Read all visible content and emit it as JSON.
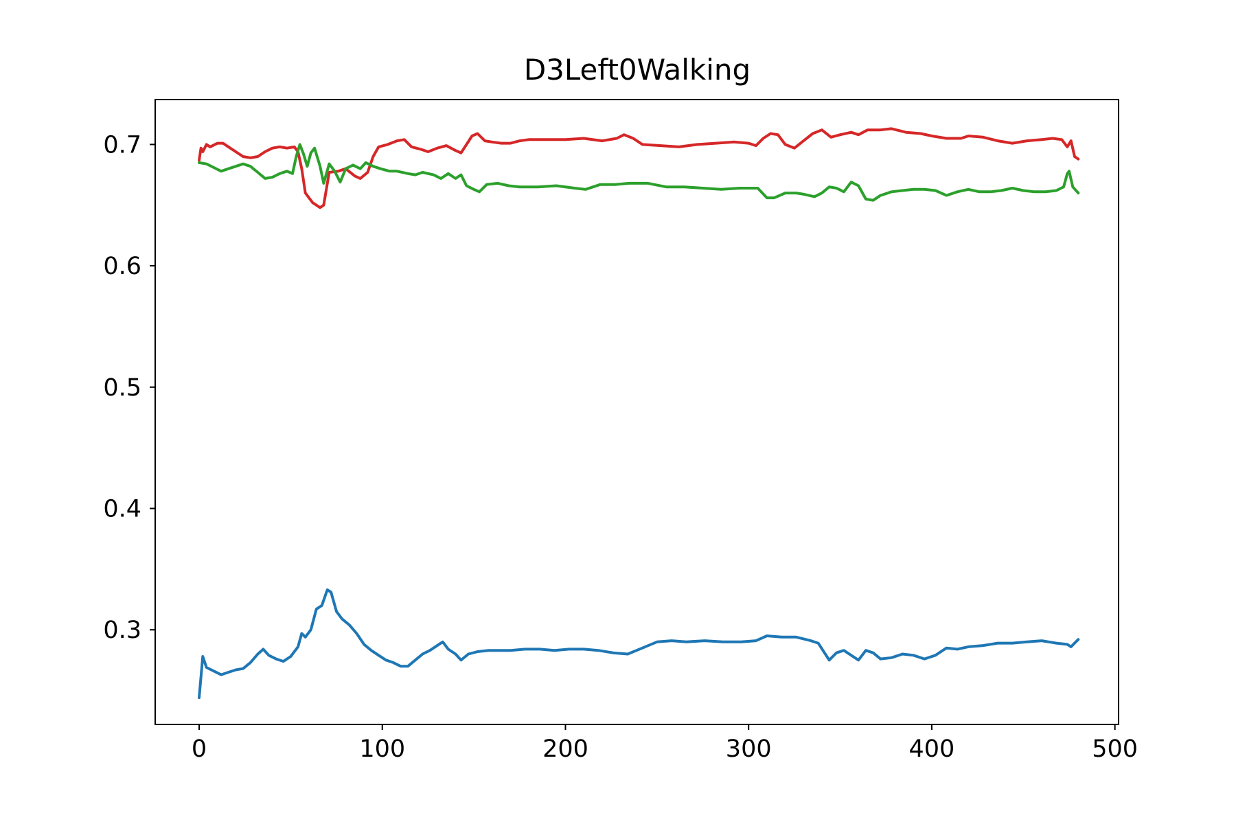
{
  "chart_data": {
    "type": "line",
    "title": "D3Left0Walking",
    "xlabel": "",
    "ylabel": "",
    "xlim": [
      -24,
      502
    ],
    "ylim": [
      0.222,
      0.737
    ],
    "xticks": [
      0,
      100,
      200,
      300,
      400,
      500
    ],
    "yticks": [
      0.3,
      0.4,
      0.5,
      0.6,
      0.7
    ],
    "grid": false,
    "legend": "none",
    "series": [
      {
        "color": "#d62728",
        "points": [
          [
            0,
            0.687
          ],
          [
            1,
            0.697
          ],
          [
            2,
            0.694
          ],
          [
            4,
            0.7
          ],
          [
            6,
            0.698
          ],
          [
            10,
            0.701
          ],
          [
            13,
            0.701
          ],
          [
            16,
            0.698
          ],
          [
            20,
            0.694
          ],
          [
            24,
            0.69
          ],
          [
            28,
            0.689
          ],
          [
            32,
            0.69
          ],
          [
            36,
            0.694
          ],
          [
            40,
            0.697
          ],
          [
            44,
            0.698
          ],
          [
            48,
            0.697
          ],
          [
            52,
            0.698
          ],
          [
            54,
            0.694
          ],
          [
            56,
            0.68
          ],
          [
            58,
            0.66
          ],
          [
            62,
            0.652
          ],
          [
            66,
            0.648
          ],
          [
            68,
            0.65
          ],
          [
            71,
            0.677
          ],
          [
            76,
            0.678
          ],
          [
            80,
            0.68
          ],
          [
            85,
            0.674
          ],
          [
            88,
            0.672
          ],
          [
            92,
            0.677
          ],
          [
            95,
            0.69
          ],
          [
            98,
            0.698
          ],
          [
            103,
            0.7
          ],
          [
            108,
            0.703
          ],
          [
            112,
            0.704
          ],
          [
            116,
            0.698
          ],
          [
            121,
            0.696
          ],
          [
            125,
            0.694
          ],
          [
            130,
            0.697
          ],
          [
            135,
            0.699
          ],
          [
            140,
            0.695
          ],
          [
            143,
            0.693
          ],
          [
            146,
            0.7
          ],
          [
            149,
            0.707
          ],
          [
            152,
            0.709
          ],
          [
            156,
            0.703
          ],
          [
            160,
            0.702
          ],
          [
            165,
            0.701
          ],
          [
            170,
            0.701
          ],
          [
            175,
            0.703
          ],
          [
            180,
            0.704
          ],
          [
            190,
            0.704
          ],
          [
            200,
            0.704
          ],
          [
            210,
            0.705
          ],
          [
            220,
            0.703
          ],
          [
            228,
            0.705
          ],
          [
            232,
            0.708
          ],
          [
            237,
            0.705
          ],
          [
            242,
            0.7
          ],
          [
            252,
            0.699
          ],
          [
            262,
            0.698
          ],
          [
            272,
            0.7
          ],
          [
            282,
            0.701
          ],
          [
            292,
            0.702
          ],
          [
            300,
            0.701
          ],
          [
            304,
            0.699
          ],
          [
            308,
            0.705
          ],
          [
            312,
            0.709
          ],
          [
            316,
            0.708
          ],
          [
            320,
            0.7
          ],
          [
            325,
            0.697
          ],
          [
            330,
            0.703
          ],
          [
            335,
            0.709
          ],
          [
            340,
            0.712
          ],
          [
            345,
            0.706
          ],
          [
            350,
            0.708
          ],
          [
            356,
            0.71
          ],
          [
            360,
            0.708
          ],
          [
            365,
            0.712
          ],
          [
            372,
            0.712
          ],
          [
            378,
            0.713
          ],
          [
            386,
            0.71
          ],
          [
            394,
            0.709
          ],
          [
            400,
            0.707
          ],
          [
            408,
            0.705
          ],
          [
            416,
            0.705
          ],
          [
            420,
            0.707
          ],
          [
            428,
            0.706
          ],
          [
            436,
            0.703
          ],
          [
            444,
            0.701
          ],
          [
            452,
            0.703
          ],
          [
            460,
            0.704
          ],
          [
            466,
            0.705
          ],
          [
            471,
            0.704
          ],
          [
            474,
            0.698
          ],
          [
            476,
            0.703
          ],
          [
            478,
            0.69
          ],
          [
            480,
            0.688
          ]
        ]
      },
      {
        "color": "#2ca02c",
        "points": [
          [
            0,
            0.685
          ],
          [
            4,
            0.684
          ],
          [
            8,
            0.681
          ],
          [
            12,
            0.678
          ],
          [
            16,
            0.68
          ],
          [
            20,
            0.682
          ],
          [
            24,
            0.684
          ],
          [
            28,
            0.682
          ],
          [
            32,
            0.677
          ],
          [
            36,
            0.672
          ],
          [
            40,
            0.673
          ],
          [
            44,
            0.676
          ],
          [
            48,
            0.678
          ],
          [
            51,
            0.676
          ],
          [
            53,
            0.69
          ],
          [
            55,
            0.7
          ],
          [
            57,
            0.692
          ],
          [
            59,
            0.682
          ],
          [
            61,
            0.693
          ],
          [
            63,
            0.697
          ],
          [
            66,
            0.682
          ],
          [
            68,
            0.668
          ],
          [
            71,
            0.684
          ],
          [
            74,
            0.678
          ],
          [
            77,
            0.669
          ],
          [
            80,
            0.68
          ],
          [
            84,
            0.683
          ],
          [
            88,
            0.68
          ],
          [
            91,
            0.685
          ],
          [
            95,
            0.682
          ],
          [
            99,
            0.68
          ],
          [
            104,
            0.678
          ],
          [
            108,
            0.678
          ],
          [
            114,
            0.676
          ],
          [
            118,
            0.675
          ],
          [
            122,
            0.677
          ],
          [
            128,
            0.675
          ],
          [
            132,
            0.672
          ],
          [
            136,
            0.676
          ],
          [
            140,
            0.672
          ],
          [
            143,
            0.675
          ],
          [
            146,
            0.666
          ],
          [
            150,
            0.663
          ],
          [
            153,
            0.661
          ],
          [
            157,
            0.667
          ],
          [
            163,
            0.668
          ],
          [
            169,
            0.666
          ],
          [
            175,
            0.665
          ],
          [
            185,
            0.665
          ],
          [
            195,
            0.666
          ],
          [
            205,
            0.664
          ],
          [
            211,
            0.663
          ],
          [
            219,
            0.667
          ],
          [
            227,
            0.667
          ],
          [
            235,
            0.668
          ],
          [
            245,
            0.668
          ],
          [
            255,
            0.665
          ],
          [
            265,
            0.665
          ],
          [
            275,
            0.664
          ],
          [
            285,
            0.663
          ],
          [
            295,
            0.664
          ],
          [
            305,
            0.664
          ],
          [
            310,
            0.656
          ],
          [
            314,
            0.656
          ],
          [
            320,
            0.66
          ],
          [
            326,
            0.66
          ],
          [
            330,
            0.659
          ],
          [
            336,
            0.657
          ],
          [
            340,
            0.66
          ],
          [
            344,
            0.665
          ],
          [
            348,
            0.664
          ],
          [
            352,
            0.661
          ],
          [
            356,
            0.669
          ],
          [
            360,
            0.666
          ],
          [
            364,
            0.655
          ],
          [
            368,
            0.654
          ],
          [
            372,
            0.658
          ],
          [
            378,
            0.661
          ],
          [
            384,
            0.662
          ],
          [
            390,
            0.663
          ],
          [
            396,
            0.663
          ],
          [
            402,
            0.662
          ],
          [
            408,
            0.658
          ],
          [
            414,
            0.661
          ],
          [
            420,
            0.663
          ],
          [
            426,
            0.661
          ],
          [
            432,
            0.661
          ],
          [
            438,
            0.662
          ],
          [
            444,
            0.664
          ],
          [
            450,
            0.662
          ],
          [
            456,
            0.661
          ],
          [
            462,
            0.661
          ],
          [
            468,
            0.662
          ],
          [
            472,
            0.665
          ],
          [
            474,
            0.676
          ],
          [
            475,
            0.678
          ],
          [
            477,
            0.665
          ],
          [
            480,
            0.66
          ]
        ]
      },
      {
        "color": "#1f77b4",
        "points": [
          [
            0,
            0.244
          ],
          [
            2,
            0.278
          ],
          [
            4,
            0.269
          ],
          [
            8,
            0.266
          ],
          [
            12,
            0.263
          ],
          [
            16,
            0.265
          ],
          [
            20,
            0.267
          ],
          [
            24,
            0.268
          ],
          [
            28,
            0.273
          ],
          [
            32,
            0.28
          ],
          [
            35,
            0.284
          ],
          [
            38,
            0.279
          ],
          [
            42,
            0.276
          ],
          [
            46,
            0.274
          ],
          [
            50,
            0.278
          ],
          [
            54,
            0.286
          ],
          [
            56,
            0.297
          ],
          [
            58,
            0.294
          ],
          [
            61,
            0.3
          ],
          [
            64,
            0.317
          ],
          [
            67,
            0.32
          ],
          [
            70,
            0.333
          ],
          [
            72,
            0.331
          ],
          [
            75,
            0.315
          ],
          [
            78,
            0.309
          ],
          [
            82,
            0.304
          ],
          [
            86,
            0.297
          ],
          [
            90,
            0.288
          ],
          [
            94,
            0.283
          ],
          [
            98,
            0.279
          ],
          [
            102,
            0.275
          ],
          [
            106,
            0.273
          ],
          [
            110,
            0.27
          ],
          [
            114,
            0.27
          ],
          [
            118,
            0.275
          ],
          [
            122,
            0.28
          ],
          [
            126,
            0.283
          ],
          [
            130,
            0.287
          ],
          [
            133,
            0.29
          ],
          [
            136,
            0.284
          ],
          [
            140,
            0.28
          ],
          [
            143,
            0.275
          ],
          [
            147,
            0.28
          ],
          [
            152,
            0.282
          ],
          [
            158,
            0.283
          ],
          [
            164,
            0.283
          ],
          [
            170,
            0.283
          ],
          [
            178,
            0.284
          ],
          [
            186,
            0.284
          ],
          [
            194,
            0.283
          ],
          [
            202,
            0.284
          ],
          [
            210,
            0.284
          ],
          [
            218,
            0.283
          ],
          [
            226,
            0.281
          ],
          [
            234,
            0.28
          ],
          [
            242,
            0.285
          ],
          [
            250,
            0.29
          ],
          [
            258,
            0.291
          ],
          [
            266,
            0.29
          ],
          [
            276,
            0.291
          ],
          [
            286,
            0.29
          ],
          [
            296,
            0.29
          ],
          [
            304,
            0.291
          ],
          [
            310,
            0.295
          ],
          [
            318,
            0.294
          ],
          [
            326,
            0.294
          ],
          [
            334,
            0.291
          ],
          [
            338,
            0.289
          ],
          [
            344,
            0.275
          ],
          [
            348,
            0.281
          ],
          [
            352,
            0.283
          ],
          [
            356,
            0.279
          ],
          [
            360,
            0.275
          ],
          [
            364,
            0.283
          ],
          [
            368,
            0.281
          ],
          [
            372,
            0.276
          ],
          [
            378,
            0.277
          ],
          [
            384,
            0.28
          ],
          [
            390,
            0.279
          ],
          [
            396,
            0.276
          ],
          [
            402,
            0.279
          ],
          [
            408,
            0.285
          ],
          [
            414,
            0.284
          ],
          [
            420,
            0.286
          ],
          [
            428,
            0.287
          ],
          [
            436,
            0.289
          ],
          [
            444,
            0.289
          ],
          [
            452,
            0.29
          ],
          [
            460,
            0.291
          ],
          [
            468,
            0.289
          ],
          [
            474,
            0.288
          ],
          [
            476,
            0.286
          ],
          [
            478,
            0.289
          ],
          [
            480,
            0.292
          ]
        ]
      }
    ]
  }
}
